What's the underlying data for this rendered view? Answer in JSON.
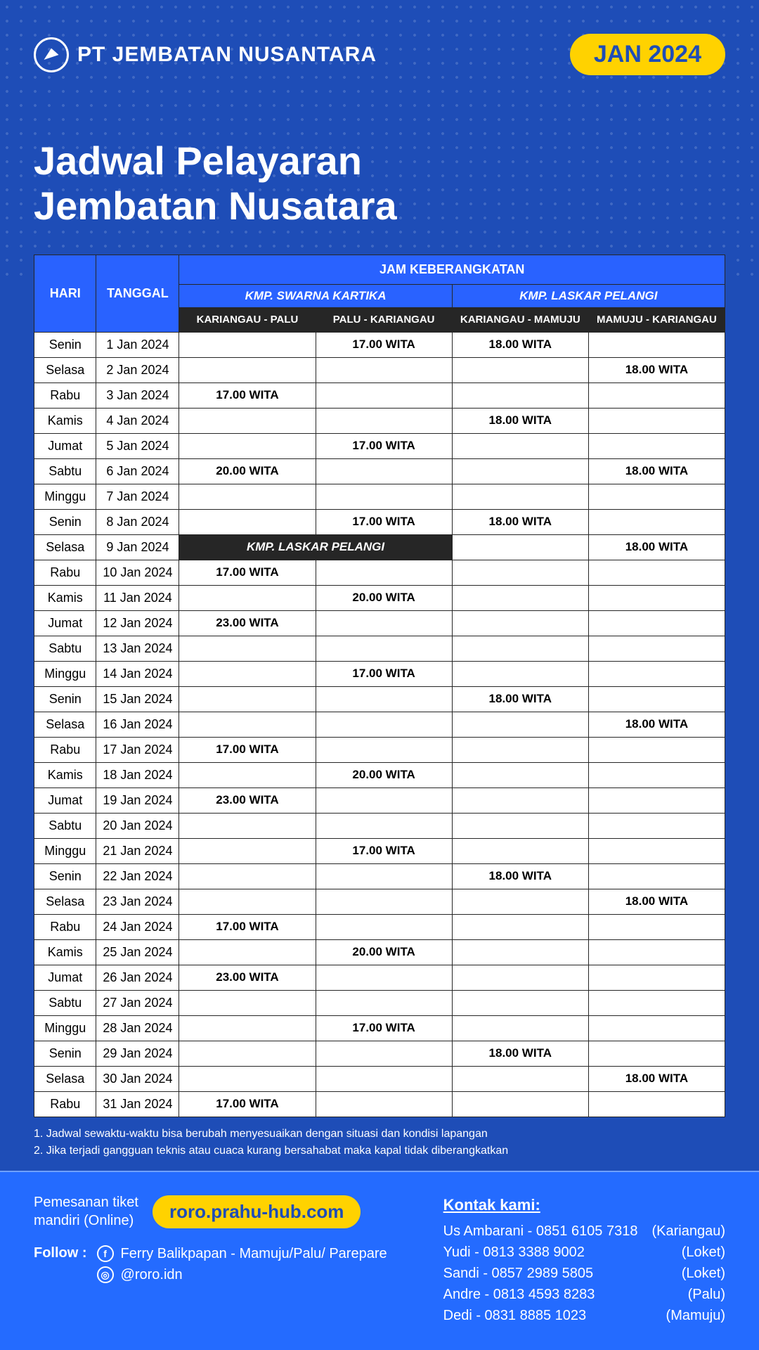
{
  "colors": {
    "page_bg": "#1e4db7",
    "footer_bg": "#246bff",
    "accent_yellow": "#ffd200",
    "header_blue": "#2962ff",
    "header_dark": "#262626",
    "cell_bg": "#ffffff",
    "border": "#262626"
  },
  "header": {
    "company": "PT JEMBATAN NUSANTARA",
    "month_badge": "JAN 2024"
  },
  "title_line1": "Jadwal Pelayaran",
  "title_line2": "Jembatan Nusatara",
  "table": {
    "col_day": "HARI",
    "col_date": "TANGGAL",
    "col_departure": "JAM KEBERANGKATAN",
    "ship1": "KMP. SWARNA KARTIKA",
    "ship2": "KMP. LASKAR PELANGI",
    "route1": "KARIANGAU - PALU",
    "route2": "PALU - KARIANGAU",
    "route3": "KARIANGAU - MAMUJU",
    "route4": "MAMUJU - KARIANGAU",
    "swap_label": "KMP. LASKAR PELANGI",
    "rows": [
      {
        "day": "Senin",
        "date": "1 Jan 2024",
        "c1": "",
        "c2": "17.00 WITA",
        "c3": "18.00 WITA",
        "c4": ""
      },
      {
        "day": "Selasa",
        "date": "2 Jan 2024",
        "c1": "",
        "c2": "",
        "c3": "",
        "c4": "18.00 WITA"
      },
      {
        "day": "Rabu",
        "date": "3 Jan 2024",
        "c1": "17.00 WITA",
        "c2": "",
        "c3": "",
        "c4": ""
      },
      {
        "day": "Kamis",
        "date": "4 Jan 2024",
        "c1": "",
        "c2": "",
        "c3": "18.00 WITA",
        "c4": ""
      },
      {
        "day": "Jumat",
        "date": "5 Jan 2024",
        "c1": "",
        "c2": "17.00 WITA",
        "c3": "",
        "c4": ""
      },
      {
        "day": "Sabtu",
        "date": "6 Jan 2024",
        "c1": "20.00 WITA",
        "c2": "",
        "c3": "",
        "c4": "18.00 WITA"
      },
      {
        "day": "Minggu",
        "date": "7 Jan 2024",
        "c1": "",
        "c2": "",
        "c3": "",
        "c4": ""
      },
      {
        "day": "Senin",
        "date": "8 Jan 2024",
        "c1": "",
        "c2": "17.00 WITA",
        "c3": "18.00 WITA",
        "c4": ""
      },
      {
        "day": "Selasa",
        "date": "9 Jan 2024",
        "swap": true,
        "c3": "",
        "c4": "18.00 WITA"
      },
      {
        "day": "Rabu",
        "date": "10 Jan 2024",
        "c1": "17.00 WITA",
        "c2": "",
        "c3": "",
        "c4": ""
      },
      {
        "day": "Kamis",
        "date": "11 Jan 2024",
        "c1": "",
        "c2": "20.00 WITA",
        "c3": "",
        "c4": ""
      },
      {
        "day": "Jumat",
        "date": "12 Jan 2024",
        "c1": "23.00 WITA",
        "c2": "",
        "c3": "",
        "c4": ""
      },
      {
        "day": "Sabtu",
        "date": "13 Jan 2024",
        "c1": "",
        "c2": "",
        "c3": "",
        "c4": ""
      },
      {
        "day": "Minggu",
        "date": "14 Jan 2024",
        "c1": "",
        "c2": "17.00 WITA",
        "c3": "",
        "c4": ""
      },
      {
        "day": "Senin",
        "date": "15 Jan 2024",
        "c1": "",
        "c2": "",
        "c3": "18.00 WITA",
        "c4": ""
      },
      {
        "day": "Selasa",
        "date": "16 Jan 2024",
        "c1": "",
        "c2": "",
        "c3": "",
        "c4": "18.00 WITA"
      },
      {
        "day": "Rabu",
        "date": "17 Jan 2024",
        "c1": "17.00 WITA",
        "c2": "",
        "c3": "",
        "c4": ""
      },
      {
        "day": "Kamis",
        "date": "18 Jan 2024",
        "c1": "",
        "c2": "20.00 WITA",
        "c3": "",
        "c4": ""
      },
      {
        "day": "Jumat",
        "date": "19 Jan 2024",
        "c1": "23.00 WITA",
        "c2": "",
        "c3": "",
        "c4": ""
      },
      {
        "day": "Sabtu",
        "date": "20 Jan 2024",
        "c1": "",
        "c2": "",
        "c3": "",
        "c4": ""
      },
      {
        "day": "Minggu",
        "date": "21 Jan 2024",
        "c1": "",
        "c2": "17.00 WITA",
        "c3": "",
        "c4": ""
      },
      {
        "day": "Senin",
        "date": "22 Jan 2024",
        "c1": "",
        "c2": "",
        "c3": "18.00 WITA",
        "c4": ""
      },
      {
        "day": "Selasa",
        "date": "23 Jan 2024",
        "c1": "",
        "c2": "",
        "c3": "",
        "c4": "18.00 WITA"
      },
      {
        "day": "Rabu",
        "date": "24 Jan 2024",
        "c1": "17.00 WITA",
        "c2": "",
        "c3": "",
        "c4": ""
      },
      {
        "day": "Kamis",
        "date": "25 Jan 2024",
        "c1": "",
        "c2": "20.00 WITA",
        "c3": "",
        "c4": ""
      },
      {
        "day": "Jumat",
        "date": "26 Jan 2024",
        "c1": "23.00 WITA",
        "c2": "",
        "c3": "",
        "c4": ""
      },
      {
        "day": "Sabtu",
        "date": "27 Jan 2024",
        "c1": "",
        "c2": "",
        "c3": "",
        "c4": ""
      },
      {
        "day": "Minggu",
        "date": "28 Jan 2024",
        "c1": "",
        "c2": "17.00 WITA",
        "c3": "",
        "c4": ""
      },
      {
        "day": "Senin",
        "date": "29 Jan 2024",
        "c1": "",
        "c2": "",
        "c3": "18.00 WITA",
        "c4": ""
      },
      {
        "day": "Selasa",
        "date": "30 Jan 2024",
        "c1": "",
        "c2": "",
        "c3": "",
        "c4": "18.00 WITA"
      },
      {
        "day": "Rabu",
        "date": "31 Jan 2024",
        "c1": "17.00 WITA",
        "c2": "",
        "c3": "",
        "c4": ""
      }
    ]
  },
  "notes": {
    "n1": "1. Jadwal sewaktu-waktu bisa berubah menyesuaikan dengan situasi dan kondisi lapangan",
    "n2": "2. Jika terjadi gangguan teknis atau cuaca kurang bersahabat maka kapal tidak diberangkatkan"
  },
  "footer": {
    "ticket_label_1": "Pemesanan tiket",
    "ticket_label_2": "mandiri (Online)",
    "url": "roro.prahu-hub.com",
    "follow_label": "Follow :",
    "fb": "Ferry Balikpapan - Mamuju/Palu/ Parepare",
    "ig": "@roro.idn",
    "kontak_title": "Kontak kami:",
    "contacts": [
      {
        "name": "Us Ambarani - 0851 6105 7318",
        "loc": "(Kariangau)"
      },
      {
        "name": "Yudi - 0813 3388 9002",
        "loc": "(Loket)"
      },
      {
        "name": "Sandi - 0857 2989 5805",
        "loc": "(Loket)"
      },
      {
        "name": "Andre - 0813 4593 8283",
        "loc": "(Palu)"
      },
      {
        "name": "Dedi - 0831 8885 1023",
        "loc": "(Mamuju)"
      }
    ]
  }
}
